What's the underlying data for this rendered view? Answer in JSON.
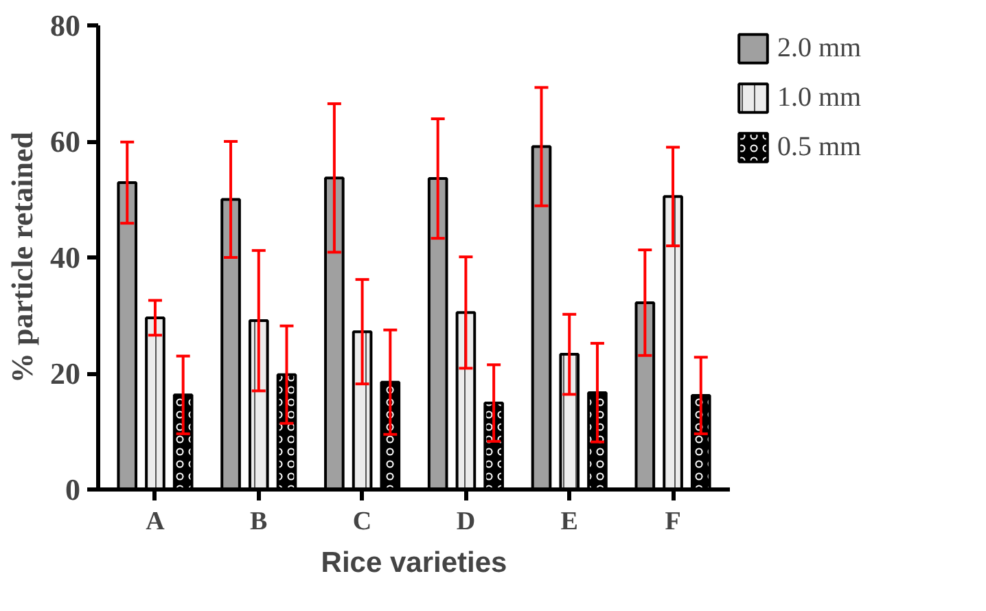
{
  "chart_data": {
    "type": "bar",
    "xlabel": "Rice varieties",
    "ylabel": "% particle retained",
    "categories": [
      "A",
      "B",
      "C",
      "D",
      "E",
      "F"
    ],
    "series": [
      {
        "name": "2.0 mm",
        "color": "#a0a0a0",
        "values": [
          52.9,
          50.0,
          53.7,
          53.6,
          59.1,
          32.2
        ],
        "errors": [
          7.0,
          10.0,
          12.8,
          10.3,
          10.2,
          9.1
        ]
      },
      {
        "name": "1.0 mm",
        "color": "#ececec",
        "values": [
          29.6,
          29.1,
          27.2,
          30.5,
          23.3,
          50.5
        ],
        "errors": [
          3.0,
          12.1,
          9.0,
          9.6,
          6.9,
          8.5
        ]
      },
      {
        "name": "0.5 mm",
        "color": "#000000",
        "values": [
          16.3,
          19.8,
          18.5,
          14.9,
          16.7,
          16.2
        ],
        "errors": [
          6.7,
          8.4,
          9.0,
          6.6,
          8.5,
          6.6
        ]
      }
    ],
    "ylim": [
      0,
      80
    ],
    "yticks": [
      0,
      20,
      40,
      60,
      80
    ],
    "grid": false,
    "legend": "top right"
  }
}
